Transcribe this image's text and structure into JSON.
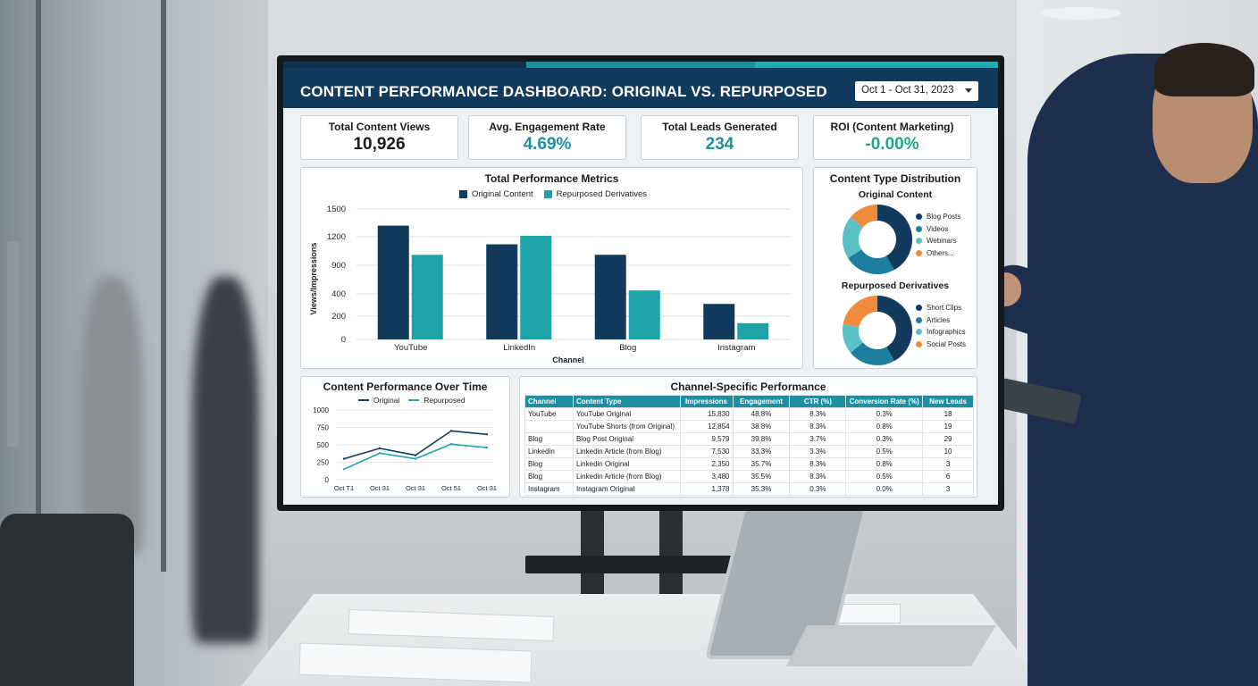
{
  "header": {
    "title": "CONTENT PERFORMANCE DASHBOARD: ORIGINAL VS. REPURPOSED",
    "date_range": "Oct 1 - Oct 31, 2023"
  },
  "kpis": [
    {
      "label": "Total Content Views",
      "value": "10,926",
      "color": "#1b1b1b"
    },
    {
      "label": "Avg. Engagement Rate",
      "value": "4.69%",
      "color": "#1e8fa0"
    },
    {
      "label": "Total Leads Generated",
      "value": "234",
      "color": "#1e8fa0"
    },
    {
      "label": "ROI (Content Marketing)",
      "value": "-0.00%",
      "color": "#1fa38f"
    }
  ],
  "colors": {
    "original": "#123a5c",
    "repurposed": "#1ea3a8"
  },
  "metrics": {
    "title": "Total Performance Metrics",
    "legend": [
      "Original Content",
      "Repurposed Derivatives"
    ]
  },
  "donuts": {
    "title": "Content Type Distribution",
    "original_title": "Original Content",
    "original_legend": [
      {
        "label": "Blog Posts",
        "color": "#123a5c"
      },
      {
        "label": "Videos",
        "color": "#1d7ea0"
      },
      {
        "label": "Webinars",
        "color": "#5cc1c7"
      },
      {
        "label": "Others...",
        "color": "#f08a3c"
      }
    ],
    "repurposed_title": "Repurposed Derivatives",
    "repurposed_legend": [
      {
        "label": "Short Clips",
        "color": "#123a5c"
      },
      {
        "label": "Articles",
        "color": "#1d7ea0"
      },
      {
        "label": "Infographics",
        "color": "#5cc1c7"
      },
      {
        "label": "Social Posts",
        "color": "#f08a3c"
      }
    ]
  },
  "overtime": {
    "title": "Content Performance Over Time",
    "legend": [
      "Original",
      "Repurposed"
    ]
  },
  "channel_table": {
    "title": "Channel-Specific Performance",
    "headers": [
      "Channel",
      "Content Type",
      "Impressions",
      "Engagement",
      "CTR (%)",
      "Conversion Rate (%)",
      "New Leads"
    ],
    "rows": [
      [
        "YouTube",
        "YouTube Original",
        "15,830",
        "48.8%",
        "8.3%",
        "0.3%",
        "18"
      ],
      [
        "",
        "YouTube Shorts (from Original)",
        "12,854",
        "38.8%",
        "8.3%",
        "0.8%",
        "19"
      ],
      [
        "Blog",
        "Blog Post Original",
        "9,579",
        "39.8%",
        "3.7%",
        "0.3%",
        "29"
      ],
      [
        "Linkedin",
        "Linkedin Article (from Blog)",
        "7,530",
        "33.3%",
        "3.3%",
        "0.5%",
        "10"
      ],
      [
        "Blog",
        "Linkedin Original",
        "2,350",
        "35.7%",
        "8.3%",
        "0.8%",
        "3"
      ],
      [
        "Blog",
        "Linkedin Article (from Blog)",
        "3,480",
        "35.5%",
        "8.3%",
        "0.5%",
        "6"
      ],
      [
        "Instagram",
        "Instagram Original",
        "1,378",
        "35.3%",
        "0.3%",
        "0.0%",
        "3"
      ]
    ]
  },
  "chart_data": [
    {
      "type": "bar",
      "title": "Total Performance Metrics",
      "xlabel": "Channel",
      "ylabel": "Views/Impressions",
      "categories": [
        "YouTube",
        "LinkedIn",
        "Blog",
        "Instagram"
      ],
      "yticks": [
        0,
        200,
        400,
        900,
        1200,
        1500
      ],
      "series": [
        {
          "name": "Original Content",
          "values": [
            1320,
            1120,
            1010,
            310
          ]
        },
        {
          "name": "Repurposed Derivatives",
          "values": [
            1010,
            1210,
            460,
            140
          ]
        }
      ],
      "legend_position": "top-center",
      "grid": true
    },
    {
      "type": "pie",
      "title": "Original Content",
      "labels": [
        "Blog Posts",
        "Videos",
        "Webinars",
        "Others..."
      ],
      "values": [
        42,
        24,
        20,
        14
      ]
    },
    {
      "type": "pie",
      "title": "Repurposed Derivatives",
      "labels": [
        "Short Clips",
        "Articles",
        "Infographics",
        "Social Posts"
      ],
      "values": [
        42,
        22,
        14,
        22
      ]
    },
    {
      "type": "line",
      "title": "Content Performance Over Time",
      "x": [
        "Oct T1",
        "Oct 31",
        "Oct 31",
        "Oct 51",
        "Oct 31"
      ],
      "yticks": [
        0,
        250,
        500,
        750,
        1000
      ],
      "series": [
        {
          "name": "Original",
          "values": [
            300,
            450,
            350,
            700,
            650
          ]
        },
        {
          "name": "Repurposed",
          "values": [
            150,
            380,
            300,
            510,
            460
          ]
        }
      ],
      "legend_position": "top-center",
      "grid": true
    }
  ]
}
